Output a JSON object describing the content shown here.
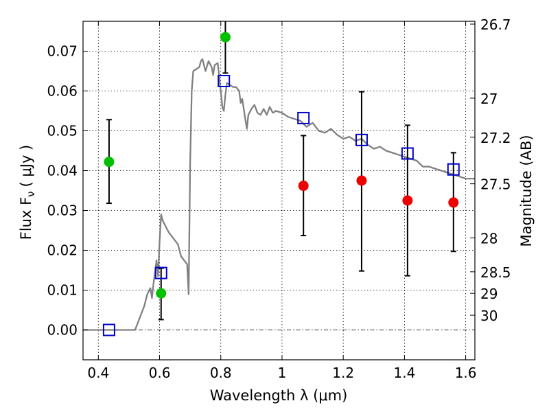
{
  "chart_data": {
    "type": "scatter",
    "title": "",
    "xlabel": "Wavelength  λ (μm)",
    "ylabel": "Flux  F",
    "ylabel_sub": "ν",
    "ylabel_unit": "( μJy )",
    "y2label": "Magnitude (AB)",
    "xlim": [
      0.35,
      1.63
    ],
    "ylim": [
      -0.0075,
      0.0775
    ],
    "grid": true,
    "legend": "none",
    "x_ticks": [
      {
        "v": 0.4,
        "label": "0.4"
      },
      {
        "v": 0.6,
        "label": "0.6"
      },
      {
        "v": 0.8,
        "label": "0.8"
      },
      {
        "v": 1.0,
        "label": "1"
      },
      {
        "v": 1.2,
        "label": "1.2"
      },
      {
        "v": 1.4,
        "label": "1.4"
      },
      {
        "v": 1.6,
        "label": "1.6"
      }
    ],
    "y_ticks": [
      {
        "v": 0.0,
        "label": "0.00"
      },
      {
        "v": 0.01,
        "label": "0.01"
      },
      {
        "v": 0.02,
        "label": "0.02"
      },
      {
        "v": 0.03,
        "label": "0.03"
      },
      {
        "v": 0.04,
        "label": "0.04"
      },
      {
        "v": 0.05,
        "label": "0.05"
      },
      {
        "v": 0.06,
        "label": "0.06"
      },
      {
        "v": 0.07,
        "label": "0.07"
      }
    ],
    "y2_ticks": [
      {
        "label": "26.7",
        "flux": 0.0768
      },
      {
        "label": "27",
        "flux": 0.0582
      },
      {
        "label": "27.2",
        "flux": 0.0484
      },
      {
        "label": "27.5",
        "flux": 0.0367
      },
      {
        "label": "28",
        "flux": 0.0231
      },
      {
        "label": "28.5",
        "flux": 0.0146
      },
      {
        "label": "29",
        "flux": 0.0092
      },
      {
        "label": "30",
        "flux": 0.0037
      }
    ],
    "series": [
      {
        "kind": "line",
        "color": "#808080",
        "points": [
          [
            0.35,
            0.0
          ],
          [
            0.52,
            0.0
          ],
          [
            0.53,
            0.002
          ],
          [
            0.55,
            0.006
          ],
          [
            0.56,
            0.009
          ],
          [
            0.57,
            0.0105
          ],
          [
            0.575,
            0.008
          ],
          [
            0.58,
            0.0115
          ],
          [
            0.59,
            0.0175
          ],
          [
            0.595,
            0.0135
          ],
          [
            0.6,
            0.022
          ],
          [
            0.605,
            0.029
          ],
          [
            0.61,
            0.0275
          ],
          [
            0.62,
            0.026
          ],
          [
            0.63,
            0.0245
          ],
          [
            0.64,
            0.0235
          ],
          [
            0.65,
            0.0225
          ],
          [
            0.66,
            0.0215
          ],
          [
            0.67,
            0.0185
          ],
          [
            0.68,
            0.0175
          ],
          [
            0.69,
            0.0165
          ],
          [
            0.695,
            0.009
          ],
          [
            0.7,
            0.042
          ],
          [
            0.705,
            0.06
          ],
          [
            0.71,
            0.065
          ],
          [
            0.72,
            0.0655
          ],
          [
            0.73,
            0.066
          ],
          [
            0.735,
            0.0675
          ],
          [
            0.74,
            0.068
          ],
          [
            0.75,
            0.065
          ],
          [
            0.76,
            0.0675
          ],
          [
            0.77,
            0.066
          ],
          [
            0.775,
            0.064
          ],
          [
            0.78,
            0.0665
          ],
          [
            0.79,
            0.067
          ],
          [
            0.8,
            0.06
          ],
          [
            0.805,
            0.056
          ],
          [
            0.81,
            0.055
          ],
          [
            0.815,
            0.059
          ],
          [
            0.82,
            0.062
          ],
          [
            0.83,
            0.0615
          ],
          [
            0.84,
            0.061
          ],
          [
            0.85,
            0.061
          ],
          [
            0.86,
            0.06
          ],
          [
            0.865,
            0.057
          ],
          [
            0.87,
            0.058
          ],
          [
            0.875,
            0.0555
          ],
          [
            0.88,
            0.053
          ],
          [
            0.885,
            0.0505
          ],
          [
            0.89,
            0.054
          ],
          [
            0.9,
            0.0555
          ],
          [
            0.91,
            0.0565
          ],
          [
            0.92,
            0.0545
          ],
          [
            0.93,
            0.054
          ],
          [
            0.94,
            0.0555
          ],
          [
            0.95,
            0.054
          ],
          [
            0.96,
            0.056
          ],
          [
            0.97,
            0.0545
          ],
          [
            0.98,
            0.055
          ],
          [
            1.0,
            0.0545
          ],
          [
            1.02,
            0.0535
          ],
          [
            1.04,
            0.053
          ],
          [
            1.06,
            0.0525
          ],
          [
            1.08,
            0.051
          ],
          [
            1.1,
            0.052
          ],
          [
            1.12,
            0.05
          ],
          [
            1.14,
            0.0495
          ],
          [
            1.16,
            0.0505
          ],
          [
            1.18,
            0.049
          ],
          [
            1.2,
            0.048
          ],
          [
            1.22,
            0.0485
          ],
          [
            1.24,
            0.0475
          ],
          [
            1.26,
            0.048
          ],
          [
            1.28,
            0.0465
          ],
          [
            1.3,
            0.0455
          ],
          [
            1.32,
            0.046
          ],
          [
            1.34,
            0.045
          ],
          [
            1.36,
            0.0445
          ],
          [
            1.38,
            0.044
          ],
          [
            1.4,
            0.0435
          ],
          [
            1.42,
            0.043
          ],
          [
            1.44,
            0.0425
          ],
          [
            1.46,
            0.041
          ],
          [
            1.48,
            0.041
          ],
          [
            1.5,
            0.0405
          ],
          [
            1.52,
            0.04
          ],
          [
            1.54,
            0.0395
          ],
          [
            1.56,
            0.039
          ],
          [
            1.58,
            0.0385
          ],
          [
            1.6,
            0.038
          ],
          [
            1.63,
            0.038
          ]
        ]
      },
      {
        "kind": "open-square",
        "color": "#0000cc",
        "points": [
          [
            0.435,
            0.0
          ],
          [
            0.605,
            0.0143
          ],
          [
            0.81,
            0.0625
          ],
          [
            1.07,
            0.0532
          ],
          [
            1.26,
            0.0477
          ],
          [
            1.41,
            0.0443
          ],
          [
            1.56,
            0.0403
          ]
        ]
      },
      {
        "kind": "filled-circle",
        "color": "#00c000",
        "points": [
          [
            0.435,
            0.0422
          ],
          [
            0.605,
            0.0092
          ],
          [
            0.815,
            0.0735
          ]
        ]
      },
      {
        "kind": "filled-circle",
        "color": "#ee0000",
        "points": [
          [
            1.07,
            0.0362
          ],
          [
            1.26,
            0.0375
          ],
          [
            1.41,
            0.0325
          ],
          [
            1.56,
            0.032
          ]
        ]
      }
    ],
    "error_bars": [
      {
        "x": 0.435,
        "low": 0.0318,
        "high": 0.0528
      },
      {
        "x": 0.605,
        "low": 0.0026,
        "high": 0.0155
      },
      {
        "x": 0.815,
        "low": 0.0645,
        "high": 0.0775
      },
      {
        "x": 1.07,
        "low": 0.0237,
        "high": 0.0488
      },
      {
        "x": 1.26,
        "low": 0.0148,
        "high": 0.0598
      },
      {
        "x": 1.41,
        "low": 0.0136,
        "high": 0.0514
      },
      {
        "x": 1.56,
        "low": 0.0197,
        "high": 0.0445
      }
    ]
  }
}
